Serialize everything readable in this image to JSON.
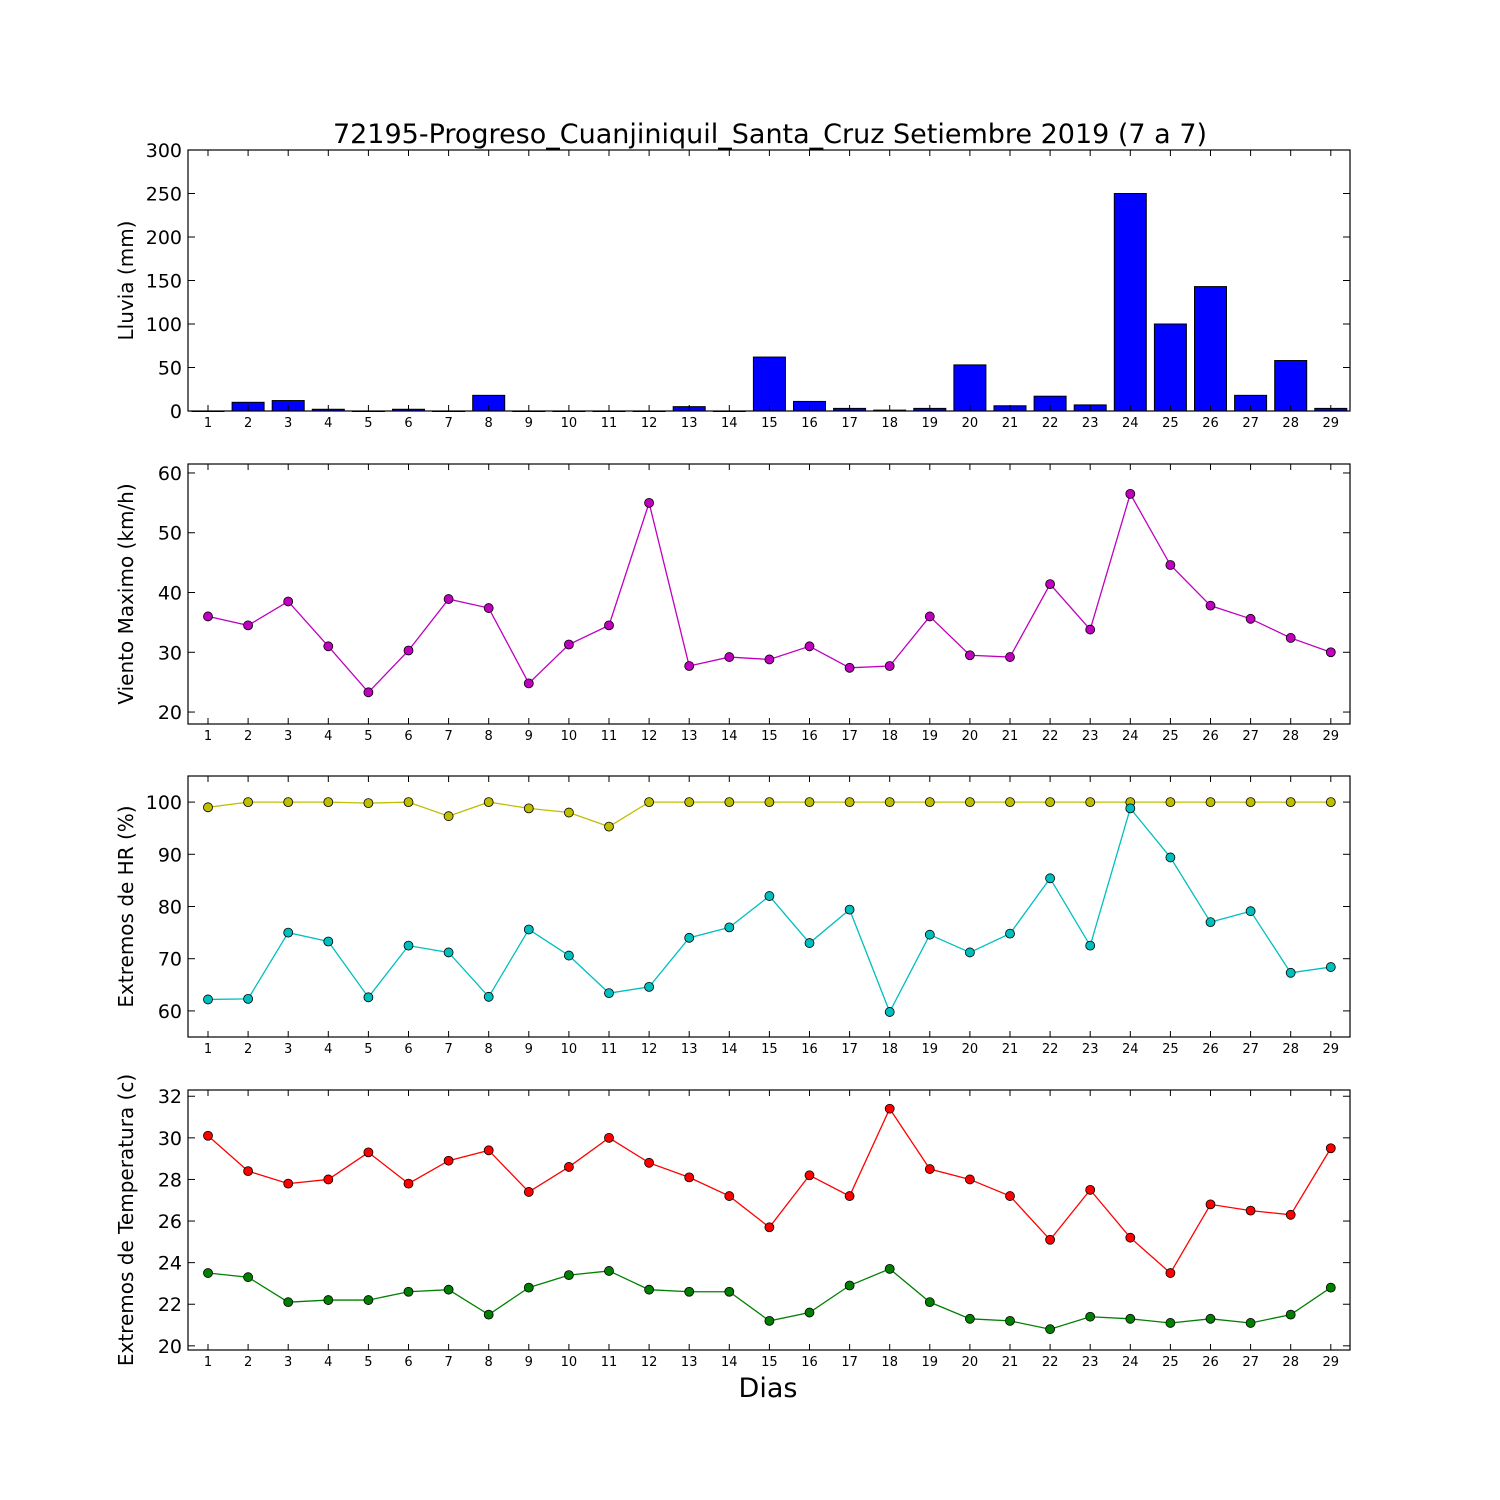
{
  "figure": {
    "title": "72195-Progreso_Cuanjiniquil_Santa_Cruz Setiembre 2019  (7 a 7)",
    "xlabel": "Dias"
  },
  "chart_data": [
    {
      "type": "bar",
      "ylabel": "Lluvia (mm)",
      "ylim": [
        0,
        300
      ],
      "yticks": [
        "0",
        "50",
        "100",
        "150",
        "200",
        "250",
        "300"
      ],
      "categories": [
        "1",
        "2",
        "3",
        "4",
        "5",
        "6",
        "7",
        "8",
        "9",
        "10",
        "11",
        "12",
        "13",
        "14",
        "15",
        "16",
        "17",
        "18",
        "19",
        "20",
        "21",
        "22",
        "23",
        "24",
        "25",
        "26",
        "27",
        "28",
        "29"
      ],
      "series": [
        {
          "color": "#0000ff",
          "values": [
            0,
            10,
            12,
            2,
            0,
            2,
            0,
            18,
            0,
            0,
            0,
            0,
            5,
            0,
            62,
            11,
            3,
            1,
            3,
            53,
            6,
            17,
            7,
            250,
            100,
            143,
            18,
            58,
            3
          ]
        }
      ],
      "grid": false
    },
    {
      "type": "line",
      "ylabel": "Viento Maximo (km/h)",
      "ylim": [
        18,
        61.5
      ],
      "yticks": [
        "20",
        "30",
        "40",
        "50",
        "60"
      ],
      "x": [
        "1",
        "2",
        "3",
        "4",
        "5",
        "6",
        "7",
        "8",
        "9",
        "10",
        "11",
        "12",
        "13",
        "14",
        "15",
        "16",
        "17",
        "18",
        "19",
        "20",
        "21",
        "22",
        "23",
        "24",
        "25",
        "26",
        "27",
        "28",
        "29"
      ],
      "series": [
        {
          "color": "#bf00bf",
          "values": [
            36.0,
            34.5,
            38.5,
            31.0,
            23.3,
            30.3,
            38.9,
            37.4,
            24.8,
            31.3,
            34.5,
            55.0,
            27.7,
            29.2,
            28.8,
            31.0,
            27.4,
            27.7,
            36.0,
            29.5,
            29.2,
            41.4,
            33.8,
            56.5,
            44.6,
            37.8,
            35.6,
            32.4,
            30.0
          ]
        }
      ],
      "grid": false
    },
    {
      "type": "line",
      "ylabel": "Extremos de HR (%)",
      "ylim": [
        55,
        105
      ],
      "yticks": [
        "60",
        "70",
        "80",
        "90",
        "100"
      ],
      "x": [
        "1",
        "2",
        "3",
        "4",
        "5",
        "6",
        "7",
        "8",
        "9",
        "10",
        "11",
        "12",
        "13",
        "14",
        "15",
        "16",
        "17",
        "18",
        "19",
        "20",
        "21",
        "22",
        "23",
        "24",
        "25",
        "26",
        "27",
        "28",
        "29"
      ],
      "series": [
        {
          "color": "#bfbf00",
          "values": [
            99.0,
            100,
            100,
            100,
            99.8,
            100,
            97.3,
            100,
            98.8,
            98.0,
            95.3,
            100,
            100,
            100,
            100,
            100,
            100,
            100,
            100,
            100,
            100,
            100,
            100,
            100,
            100,
            100,
            100,
            100,
            100
          ]
        },
        {
          "color": "#00bfbf",
          "values": [
            62.2,
            62.3,
            75.0,
            73.3,
            62.6,
            72.5,
            71.2,
            62.7,
            75.6,
            70.6,
            63.4,
            64.6,
            74.0,
            76.0,
            82.0,
            73.0,
            79.4,
            59.8,
            74.6,
            71.2,
            74.8,
            85.4,
            72.5,
            98.8,
            89.4,
            77.0,
            79.1,
            67.3,
            68.4
          ]
        }
      ],
      "grid": false
    },
    {
      "type": "line",
      "ylabel": "Extremos de Temperatura (c)",
      "ylim": [
        19.8,
        32.3
      ],
      "yticks": [
        "20",
        "22",
        "24",
        "26",
        "28",
        "30",
        "32"
      ],
      "x": [
        "1",
        "2",
        "3",
        "4",
        "5",
        "6",
        "7",
        "8",
        "9",
        "10",
        "11",
        "12",
        "13",
        "14",
        "15",
        "16",
        "17",
        "18",
        "19",
        "20",
        "21",
        "22",
        "23",
        "24",
        "25",
        "26",
        "27",
        "28",
        "29"
      ],
      "series": [
        {
          "color": "#ff0000",
          "values": [
            30.1,
            28.4,
            27.8,
            28.0,
            29.3,
            27.8,
            28.9,
            29.4,
            27.4,
            28.6,
            30.0,
            28.8,
            28.1,
            27.2,
            25.7,
            28.2,
            27.2,
            31.4,
            28.5,
            28.0,
            27.2,
            25.1,
            27.5,
            25.2,
            23.5,
            26.8,
            26.5,
            26.3,
            29.5
          ]
        },
        {
          "color": "#008000",
          "values": [
            23.5,
            23.3,
            22.1,
            22.2,
            22.2,
            22.6,
            22.7,
            21.5,
            22.8,
            23.4,
            23.6,
            22.7,
            22.6,
            22.6,
            21.2,
            21.6,
            22.9,
            23.7,
            22.1,
            21.3,
            21.2,
            20.8,
            21.4,
            21.3,
            21.1,
            21.3,
            21.1,
            21.5,
            22.8
          ]
        }
      ],
      "grid": false
    }
  ]
}
